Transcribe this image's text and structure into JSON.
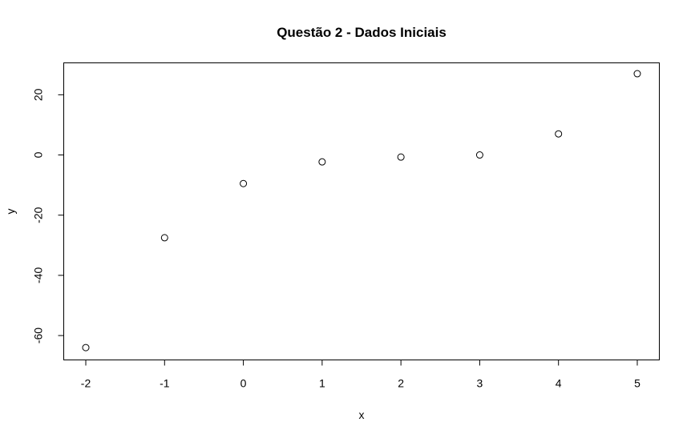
{
  "chart_data": {
    "type": "scatter",
    "title": "Questão 2 - Dados Iniciais",
    "xlabel": "x",
    "ylabel": "y",
    "x": [
      -2,
      -1,
      0,
      1,
      2,
      3,
      4,
      5
    ],
    "y": [
      -64,
      -27.5,
      -9.5,
      -2.3,
      -0.7,
      0,
      7,
      27
    ],
    "xticks": [
      -2,
      -1,
      0,
      1,
      2,
      3,
      4,
      5
    ],
    "xtick_labels": [
      "-2",
      "-1",
      "0",
      "1",
      "2",
      "3",
      "4",
      "5"
    ],
    "yticks": [
      -60,
      -40,
      -20,
      0,
      20
    ],
    "ytick_labels": [
      "-60",
      "-40",
      "-20",
      "0",
      "20"
    ],
    "xlim": [
      -2.28,
      5.28
    ],
    "ylim": [
      -68.1,
      30.6
    ],
    "grid": false,
    "marker": "open-circle",
    "colors": {
      "points": "#000000",
      "background": "#ffffff"
    }
  }
}
